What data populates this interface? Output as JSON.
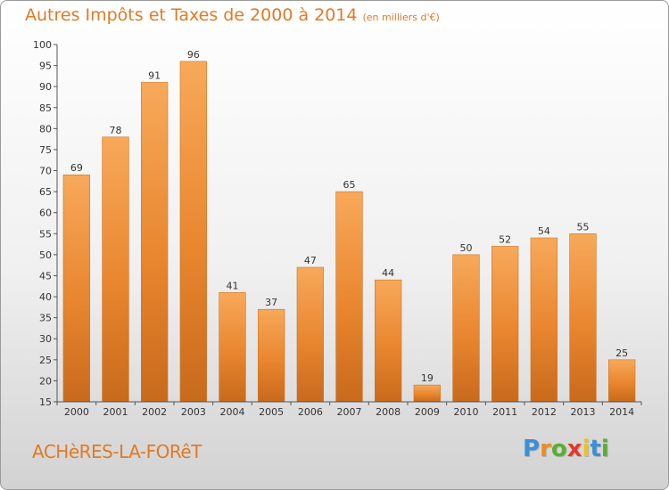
{
  "chart_data": {
    "type": "bar",
    "title": "Autres Impôts et Taxes de 2000 à 2014",
    "subtitle": "(en milliers d'€)",
    "categories": [
      "2000",
      "2001",
      "2002",
      "2003",
      "2004",
      "2005",
      "2006",
      "2007",
      "2008",
      "2009",
      "2010",
      "2011",
      "2012",
      "2013",
      "2014"
    ],
    "values": [
      69,
      78,
      91,
      96,
      41,
      37,
      47,
      65,
      44,
      19,
      50,
      52,
      54,
      55,
      25
    ],
    "ylim": [
      15,
      100
    ],
    "yticks": [
      15,
      20,
      25,
      30,
      35,
      40,
      45,
      50,
      55,
      60,
      65,
      70,
      75,
      80,
      85,
      90,
      95,
      100
    ],
    "grid": false,
    "bar_color": "#f0923a",
    "bar_color_dark": "#c86a1c"
  },
  "commune": "ACHèRES-LA-FORêT",
  "brand": {
    "letters": [
      "P",
      "r",
      "o",
      "x",
      "i",
      "t",
      "i"
    ],
    "colors": [
      "#3b8fd6",
      "#f08a1c",
      "#57b030",
      "#e03c2c",
      "#f2c01a",
      "#3b8fd6",
      "#57b030"
    ]
  },
  "colors": {
    "accent": "#e07a26"
  }
}
